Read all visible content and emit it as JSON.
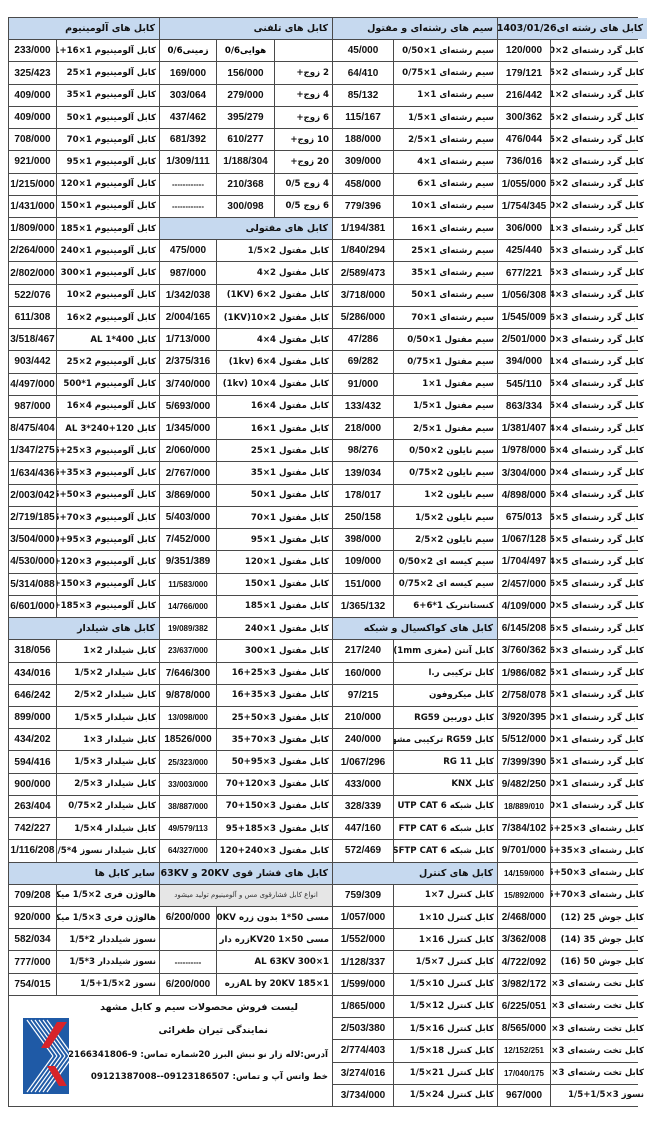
{
  "colors": {
    "header_bg": "#c6d9ef",
    "note_bg": "#e6e6e6",
    "border": "#4a4a4a",
    "logo_blue": "#1f5aa6",
    "logo_red": "#d8232a"
  },
  "round": {
    "date": "1403/01/26",
    "title": "کابل های رشته ای",
    "items": [
      [
        "کابل گرد رشته‌ای 2×0/50",
        "120/000"
      ],
      [
        "کابل گرد رشته‌ای 2×0/75",
        "179/121"
      ],
      [
        "کابل گرد رشته‌ای 2×1",
        "216/442"
      ],
      [
        "کابل گرد رشته‌ای 2×1/5",
        "300/362"
      ],
      [
        "کابل گرد رشته‌ای 2×2/5",
        "476/044"
      ],
      [
        "کابل گرد رشته‌ای 2×4",
        "736/016"
      ],
      [
        "کابل گرد رشته‌ای 2×6",
        "1/055/000"
      ],
      [
        "کابل گرد رشته‌ای 2×10",
        "1/754/345"
      ],
      [
        "کابل گرد رشته‌ای 3×1",
        "306/000"
      ],
      [
        "کابل گرد رشته‌ای 3×1/5",
        "425/440"
      ],
      [
        "کابل گرد رشته‌ای 3×2/5",
        "677/221"
      ],
      [
        "کابل گرد رشته‌ای 3×4",
        "1/056/308"
      ],
      [
        "کابل گرد رشته‌ای 3×6",
        "1/545/009"
      ],
      [
        "کابل گرد رشته‌ای 3×10",
        "2/501/000"
      ],
      [
        "کابل گرد رشته‌ای 4×1",
        "394/000"
      ],
      [
        "کابل گرد رشته‌ای 4×1/5",
        "545/110"
      ],
      [
        "کابل گرد رشته‌ای 4×2/5",
        "863/334"
      ],
      [
        "کابل گرد رشته‌ای 4×4",
        "1/381/407"
      ],
      [
        "کابل گرد رشته‌ای 4×6",
        "1/978/000"
      ],
      [
        "کابل گرد رشته‌ای 4×10",
        "3/304/000"
      ],
      [
        "کابل گرد رشته‌ای 4×16",
        "4/898/000"
      ],
      [
        "کابل گرد رشته‌ای 5×1/5",
        "675/013"
      ],
      [
        "کابل گرد رشته‌ای 5×2/5",
        "1/067/128"
      ],
      [
        "کابل گرد رشته‌ای 5×4",
        "1/704/497"
      ],
      [
        "کابل گرد رشته‌ای 5×6",
        "2/457/000"
      ],
      [
        "کابل گرد رشته‌ای 5×10",
        "4/109/000"
      ],
      [
        "کابل گرد رشته‌ای 5×16",
        "6/145/208"
      ],
      [
        "کابل گرد رشته‌ای 3×16",
        "3/760/362"
      ],
      [
        "کابل گرد رشته‌ای 1×25",
        "1/986/082"
      ],
      [
        "کابل گرد رشته‌ای 1×35",
        "2/758/078"
      ],
      [
        "کابل گرد رشته‌ای 1×50",
        "3/920/395"
      ],
      [
        "کابل گرد رشته‌ای 1×70",
        "5/512/000"
      ],
      [
        "کابل گرد رشته‌ای 1×95",
        "7/399/390"
      ],
      [
        "کابل گرد رشته‌ای 1×120",
        "9/482/250"
      ],
      [
        "کابل گرد رشته‌ای 1×240",
        "18/889/010"
      ],
      [
        "کابل رشته‌ای 3×25+16",
        "7/384/102"
      ],
      [
        "کابل رشته‌ای 3×35+16",
        "9/701/000"
      ],
      [
        "کابل رشته‌ای 3×50+25",
        "14/159/000"
      ],
      [
        "کابل رشته‌ای 3×70+35",
        "15/892/000"
      ],
      [
        "کابل جوش 25 (12)",
        "2/468/000"
      ],
      [
        "کابل جوش 35 (14)",
        "3/362/008"
      ],
      [
        "کابل جوش 50 (16)",
        "4/722/092"
      ],
      [
        "کابل تخت رشته‌ای 3×16",
        "3/982/172"
      ],
      [
        "کابل تخت رشته‌ای 3×25",
        "6/225/051"
      ],
      [
        "کابل تخت رشته‌ای 3×35",
        "8/565/000"
      ],
      [
        "کابل تخت رشته‌ای 3×50",
        "12/152/251"
      ],
      [
        "کابل تخت رشته‌ای 3×70",
        "17/040/175"
      ],
      [
        "نسوز 3×1/5+1/5",
        "967/000"
      ]
    ]
  },
  "wire": {
    "title": "سیم های رشته‌ای و مفتول",
    "items": [
      [
        "سیم رشته‌ای 1×0/50",
        "45/000"
      ],
      [
        "سیم رشته‌ای 1×0/75",
        "64/410"
      ],
      [
        "سیم رشته‌ای 1×1",
        "85/132"
      ],
      [
        "سیم رشته‌ای 1×1/5",
        "115/167"
      ],
      [
        "سیم رشته‌ای 1×2/5",
        "188/000"
      ],
      [
        "سیم رشته‌ای 1×4",
        "309/000"
      ],
      [
        "سیم رشته‌ای 1×6",
        "458/000"
      ],
      [
        "سیم رشته‌ای 1×10",
        "779/396"
      ],
      [
        "سیم رشته‌ای 1×16",
        "1/194/381"
      ],
      [
        "سیم رشته‌ای 1×25",
        "1/840/294"
      ],
      [
        "سیم رشته‌ای 1×35",
        "2/589/473"
      ],
      [
        "سیم رشته‌ای 1×50",
        "3/718/000"
      ],
      [
        "سیم رشته‌ای 1×70",
        "5/286/000"
      ],
      [
        "سیم مفتول 1×0/50",
        "47/286"
      ],
      [
        "سیم مفتول 1×0/75",
        "69/282"
      ],
      [
        "سیم مفتول 1×1",
        "91/000"
      ],
      [
        "سیم مفتول 1×1/5",
        "133/432"
      ],
      [
        "سیم مفتول 1×2/5",
        "218/000"
      ],
      [
        "سیم نایلون 2×0/50",
        "98/276"
      ],
      [
        "سیم نایلون 2×0/75",
        "139/034"
      ],
      [
        "سیم نایلون 2×1",
        "178/017"
      ],
      [
        "سیم نایلون 2×1/5",
        "250/158"
      ],
      [
        "سیم نایلون 2×2/5",
        "398/000"
      ],
      [
        "سیم کیسه ای 2×0/50",
        "109/000"
      ],
      [
        "سیم کیسه ای 2×0/75",
        "151/000"
      ],
      [
        "کنستانتریک 1*6+6",
        "1/365/132"
      ]
    ]
  },
  "coax": {
    "title": "کابل های کواکسیال و شبکه",
    "items": [
      [
        "کابل آنتن (مغزی 1mm)",
        "217/240"
      ],
      [
        "کابل ترکیبی ر.ا",
        "160/000"
      ],
      [
        "کابل میکروفون",
        "97/215"
      ],
      [
        "کابل دوربین RG59",
        "210/000"
      ],
      [
        "کابل RG59 ترکیبی مشهد",
        "240/000"
      ],
      [
        "کابل RG 11",
        "1/067/296"
      ],
      [
        "کابل KNX",
        "433/000"
      ],
      [
        "کابل شبکه UTP CAT 6",
        "328/339"
      ],
      [
        "کابل شبکه FTP CAT 6",
        "447/160"
      ],
      [
        "کابل شبکه SFTP CAT 6",
        "572/469"
      ]
    ]
  },
  "control": {
    "title": "کابل های کنترل",
    "items": [
      [
        "کابل کنترل 7×1",
        "759/309"
      ],
      [
        "کابل کنترل 10×1",
        "1/057/000"
      ],
      [
        "کابل کنترل 16×1",
        "1/552/000"
      ],
      [
        "کابل کنترل 7×1/5",
        "1/128/337"
      ],
      [
        "کابل کنترل 10×1/5",
        "1/599/000"
      ],
      [
        "کابل کنترل 12×1/5",
        "1/865/000"
      ],
      [
        "کابل کنترل 16×1/5",
        "2/503/380"
      ],
      [
        "کابل کنترل 18×1/5",
        "2/774/403"
      ],
      [
        "کابل کنترل 21×1/5",
        "3/274/016"
      ],
      [
        "کابل کنترل 24×1/5",
        "3/734/000"
      ]
    ]
  },
  "phone": {
    "title": "کابل های تلفنی",
    "col_air": "هوایی0/6",
    "col_ground": "زمینی0/6",
    "items": [
      [
        "2 زوج+",
        "156/000",
        "169/000"
      ],
      [
        "4 زوج+",
        "279/000",
        "303/064"
      ],
      [
        "6 زوج+",
        "395/279",
        "437/462"
      ],
      [
        "10 زوج+",
        "610/277",
        "681/392"
      ],
      [
        "20 زوج+",
        "1/188/304",
        "1/309/111"
      ],
      [
        "4 زوج 0/5",
        "210/368",
        "------------"
      ],
      [
        "6 زوج 0/5",
        "300/098",
        "------------"
      ]
    ]
  },
  "solid": {
    "title": "کابل های مفتولی",
    "items": [
      [
        "کابل مفتول 2×1/5",
        "475/000"
      ],
      [
        "کابل مفتول 2×4",
        "987/000"
      ],
      [
        "کابل مفتول 2×6 (1KV)",
        "1/342/038"
      ],
      [
        "کابل مفتول 2×10(1KV)",
        "2/004/165"
      ],
      [
        "کابل مفتول 4×4",
        "1/713/000"
      ],
      [
        "کابل مفتول 4×6 (1kv)",
        "2/375/316"
      ],
      [
        "کابل مفتول 4×10 (1kv)",
        "3/740/000"
      ],
      [
        "کابل مفتول 4×16",
        "5/693/000"
      ],
      [
        "کابل مفتول 1×16",
        "1/345/000"
      ],
      [
        "کابل مفتول 1×25",
        "2/060/000"
      ],
      [
        "کابل مفتول 1×35",
        "2/767/000"
      ],
      [
        "کابل مفتول 1×50",
        "3/869/000"
      ],
      [
        "کابل مفتول 1×70",
        "5/403/000"
      ],
      [
        "کابل مفتول 1×95",
        "7/452/000"
      ],
      [
        "کابل مفتول 1×120",
        "9/351/389"
      ],
      [
        "کابل مفتول 1×150",
        "11/583/000"
      ],
      [
        "کابل مفتول 1×185",
        "14/766/000"
      ],
      [
        "کابل مفتول 1×240",
        "19/089/382"
      ],
      [
        "کابل مفتول 1×300",
        "23/637/000"
      ],
      [
        "کابل مفتول 3×25+16",
        "7/646/300"
      ],
      [
        "کابل مفتول 3×35+16",
        "9/878/000"
      ],
      [
        "کابل مفتول 3×50+25",
        "13/098/000"
      ],
      [
        "کابل مفتول 3×70+35",
        "18526/000"
      ],
      [
        "کابل مفتول 3×95+50",
        "25/323/000"
      ],
      [
        "کابل مفتول 3×120+70",
        "33/003/000"
      ],
      [
        "کابل مفتول 3×150+70",
        "38/887/000"
      ],
      [
        "کابل مفتول 3×185+95",
        "49/579/113"
      ],
      [
        "کابل مفتول 3×240+120",
        "64/327/000"
      ]
    ]
  },
  "hv": {
    "title": "کابل های فشار قوی 20KV و 63KV",
    "note": "انواع کابل فشارقوی مس و آلومینیوم تولید میشود",
    "items": [
      [
        "مسی 50*1 بدون زره 20KV",
        "6/200/000"
      ],
      [
        "مسی 50×1 KV20زره دار",
        ""
      ],
      [
        "1×300 AL   63KV",
        "----------"
      ],
      [
        "1×185 AL  by 20KVزره",
        "6/200/000"
      ]
    ]
  },
  "aluminum": {
    "title": "کابل های آلومینیوم",
    "items": [
      [
        "کابل آلومینیوم 1×16+1++",
        "233/000"
      ],
      [
        "کابل آلومینیوم 1×25",
        "325/423"
      ],
      [
        "کابل آلومینیوم 1×35",
        "409/000"
      ],
      [
        "کابل آلومینیوم 1×50",
        "409/000"
      ],
      [
        "کابل آلومینیوم 1×70",
        "708/000"
      ],
      [
        "کابل آلومینیوم 1×95",
        "921/000"
      ],
      [
        "کابل آلومینیوم 1×120",
        "1/215/000"
      ],
      [
        "کابل آلومینیوم 1×150",
        "1/431/000"
      ],
      [
        "کابل آلومینیوم 1×185",
        "1/809/000"
      ],
      [
        "کابل آلومینیوم 1×240",
        "2/264/000"
      ],
      [
        "کابل آلومینیوم 1×300",
        "2/802/000"
      ],
      [
        "کابل آلومینیوم 2×10",
        "522/076"
      ],
      [
        "کابل آلومینیوم 2×16",
        "611/308"
      ],
      [
        "کابل AL 1*400",
        "3/518/467"
      ],
      [
        "کابل آلومینیوم 2×25",
        "903/442"
      ],
      [
        "کابل آلومینیوم 1*500",
        "4/497/000"
      ],
      [
        "کابل آلومینیوم 4×16",
        "987/000"
      ],
      [
        "کابل AL 3*240+120",
        "8/475/404"
      ],
      [
        "کابل آلومینیوم 3×25+16",
        "1/347/275"
      ],
      [
        "کابل آلومینیوم 3×35+16",
        "1/634/436"
      ],
      [
        "کابل آلومینیوم 3×50+25",
        "2/003/042"
      ],
      [
        "کابل آلومینیوم 3×70+35",
        "2/719/185"
      ],
      [
        "کابل آلومینیوم 3×95+50",
        "3/504/000"
      ],
      [
        "کابل آلومینیوم 3×120+70",
        "4/530/000"
      ],
      [
        "کابل آلومینیوم 3×150+70",
        "5/314/088"
      ],
      [
        "کابل آلومینیوم 3×185+95",
        "6/601/000"
      ]
    ]
  },
  "shielded": {
    "title": "کابل های شیلدار",
    "items": [
      [
        "کابل شیلدار 2×1",
        "318/056"
      ],
      [
        "کابل شیلدار 2×1/5",
        "434/016"
      ],
      [
        "کابل شیلدار 2×2/5",
        "646/242"
      ],
      [
        "کابل شیلدار 5×1/5",
        "899/000"
      ],
      [
        "کابل شیلدار 3×1",
        "434/202"
      ],
      [
        "کابل شیلدار 3×1/5",
        "594/416"
      ],
      [
        "کابل شیلدار 3×2/5",
        "900/000"
      ],
      [
        "کابل شیلدار 2×0/75",
        "263/404"
      ],
      [
        "کابل شیلدار 4×1/5",
        "742/227"
      ],
      [
        "کابل شیلدار نسوز 4*1/5",
        "1/116/208"
      ]
    ]
  },
  "other": {
    "title": "سایر کابل ها",
    "items": [
      [
        "هالوژن فری 2×1/5 میکا",
        "709/208"
      ],
      [
        "هالوژن فری 3×1/5 میکا",
        "920/000"
      ],
      [
        "نسوز شیلددار 2*1/5",
        "582/034"
      ],
      [
        "نسوز شیلددار 3*1/5",
        "777/000"
      ],
      [
        "نسوز 2×1/5+1/5",
        "754/015"
      ]
    ]
  },
  "footer": {
    "line1": "لیست فروش محصولات سیم و کابل مشهد",
    "line2": "نمایندگی تیران طغرائی",
    "line3": "آدرس:لاله زار نو نبش البرز 20شماره تماس: 9-02166341806",
    "line4": "خط واتس آپ و تماس: 09123186507--09121387008",
    "logo_icon": "company-logo"
  }
}
